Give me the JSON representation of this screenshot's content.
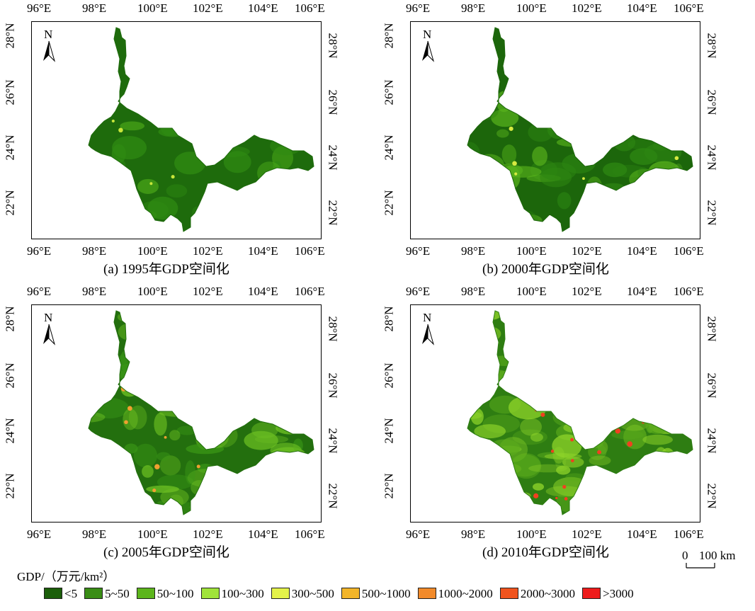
{
  "panels": [
    {
      "caption": "(a) 1995年GDP空间化",
      "top_ticks": [
        "96°E",
        "98°E",
        "100°E",
        "102°E",
        "104°E",
        "106°E"
      ],
      "bottom_ticks": [
        "96°E",
        "98°E",
        "100°E",
        "102°E",
        "104°E",
        "106°E"
      ],
      "left_ticks": [
        "28°N",
        "26°N",
        "24°N",
        "22°N"
      ],
      "right_ticks": [
        "28°N",
        "26°N",
        "24°N",
        "22°N"
      ],
      "north_label": "N",
      "palette": {
        "base": "#1e6b0c",
        "mid": "#2f8a12",
        "light": "#4fae1a",
        "hot": "#c8e63a"
      }
    },
    {
      "caption": "(b) 2000年GDP空间化",
      "top_ticks": [
        "96°E",
        "98°E",
        "100°E",
        "102°E",
        "104°E",
        "106°E"
      ],
      "bottom_ticks": [
        "96°E",
        "98°E",
        "100°E",
        "102°E",
        "104°E",
        "106°E"
      ],
      "left_ticks": [
        "28°N",
        "26°N",
        "24°N",
        "22°N"
      ],
      "right_ticks": [
        "28°N",
        "26°N",
        "24°N",
        "22°N"
      ],
      "north_label": "N",
      "palette": {
        "base": "#1c660b",
        "mid": "#2d8612",
        "light": "#58b21c",
        "hot": "#d6ea40"
      }
    },
    {
      "caption": "(c) 2005年GDP空间化",
      "top_ticks": [
        "96°E",
        "98°E",
        "100°E",
        "102°E",
        "104°E",
        "106°E"
      ],
      "bottom_ticks": [
        "96°E",
        "98°E",
        "100°E",
        "102°E",
        "104°E",
        "106°E"
      ],
      "left_ticks": [
        "28°N",
        "26°N",
        "24°N",
        "22°N"
      ],
      "right_ticks": [
        "28°N",
        "26°N",
        "24°N",
        "22°N"
      ],
      "north_label": "N",
      "palette": {
        "base": "#236f0e",
        "mid": "#3a9616",
        "light": "#6cbf22",
        "hot": "#f0a030"
      }
    },
    {
      "caption": "(d) 2010年GDP空间化",
      "top_ticks": [
        "96°E",
        "98°E",
        "100°E",
        "102°E",
        "104°E",
        "106°E"
      ],
      "bottom_ticks": [
        "96°E",
        "98°E",
        "100°E",
        "102°E",
        "104°E",
        "106°E"
      ],
      "left_ticks": [
        "28°N",
        "26°N",
        "24°N",
        "22°N"
      ],
      "right_ticks": [
        "28°N",
        "26°N",
        "24°N",
        "22°N"
      ],
      "north_label": "N",
      "palette": {
        "base": "#2e7d12",
        "mid": "#5aaa1c",
        "light": "#8fd42a",
        "hot": "#f04020"
      }
    }
  ],
  "scale_bar": {
    "label_zero": "0",
    "label_distance": "100 km"
  },
  "legend": {
    "title": "GDP/（万元/km²）",
    "items": [
      {
        "label": "<5",
        "color": "#1b5e0a"
      },
      {
        "label": "5~50",
        "color": "#3a8d16"
      },
      {
        "label": "50~100",
        "color": "#5cb51c"
      },
      {
        "label": "100~300",
        "color": "#a0e33a"
      },
      {
        "label": "300~500",
        "color": "#e4f24a"
      },
      {
        "label": "500~1000",
        "color": "#f2b52a"
      },
      {
        "label": "1000~2000",
        "color": "#f28a2a"
      },
      {
        "label": "2000~3000",
        "color": "#f0541e"
      },
      {
        "label": ">3000",
        "color": "#ee1c1c"
      }
    ]
  }
}
